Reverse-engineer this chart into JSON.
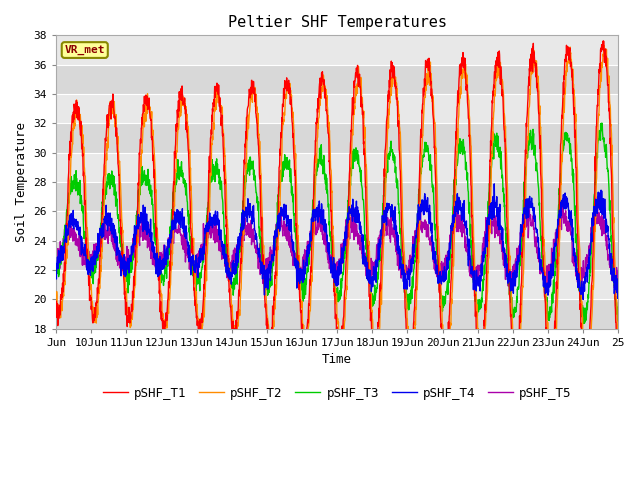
{
  "title": "Peltier SHF Temperatures",
  "xlabel": "Time",
  "ylabel": "Soil Temperature",
  "ylim": [
    18,
    38
  ],
  "xlim_days": [
    9,
    25
  ],
  "annotation": "VR_met",
  "annotation_color": "#8B0000",
  "annotation_bg": "#FFFF99",
  "background_color": "#E8E8E8",
  "fig_bg": "#FFFFFF",
  "series": {
    "pSHF_T1": {
      "color": "#FF0000",
      "lw": 1.0
    },
    "pSHF_T2": {
      "color": "#FF8C00",
      "lw": 1.0
    },
    "pSHF_T3": {
      "color": "#00CC00",
      "lw": 1.0
    },
    "pSHF_T4": {
      "color": "#0000EE",
      "lw": 1.0
    },
    "pSHF_T5": {
      "color": "#AA00AA",
      "lw": 1.0
    }
  },
  "xtick_labels": [
    "Jun",
    "10Jun",
    "11Jun",
    "12Jun",
    "13Jun",
    "14Jun",
    "15Jun",
    "16Jun",
    "17Jun",
    "18Jun",
    "19Jun",
    "20Jun",
    "21Jun",
    "22Jun",
    "23Jun",
    "24Jun",
    "25"
  ],
  "xtick_positions": [
    9,
    10,
    11,
    12,
    13,
    14,
    15,
    16,
    17,
    18,
    19,
    20,
    21,
    22,
    23,
    24,
    25
  ],
  "ytick_labels": [
    "18",
    "20",
    "22",
    "24",
    "26",
    "28",
    "30",
    "32",
    "34",
    "36",
    "38"
  ],
  "ytick_positions": [
    18,
    20,
    22,
    24,
    26,
    28,
    30,
    32,
    34,
    36,
    38
  ],
  "font": "monospace",
  "title_fontsize": 11,
  "label_fontsize": 9,
  "tick_fontsize": 8,
  "legend_fontsize": 9
}
